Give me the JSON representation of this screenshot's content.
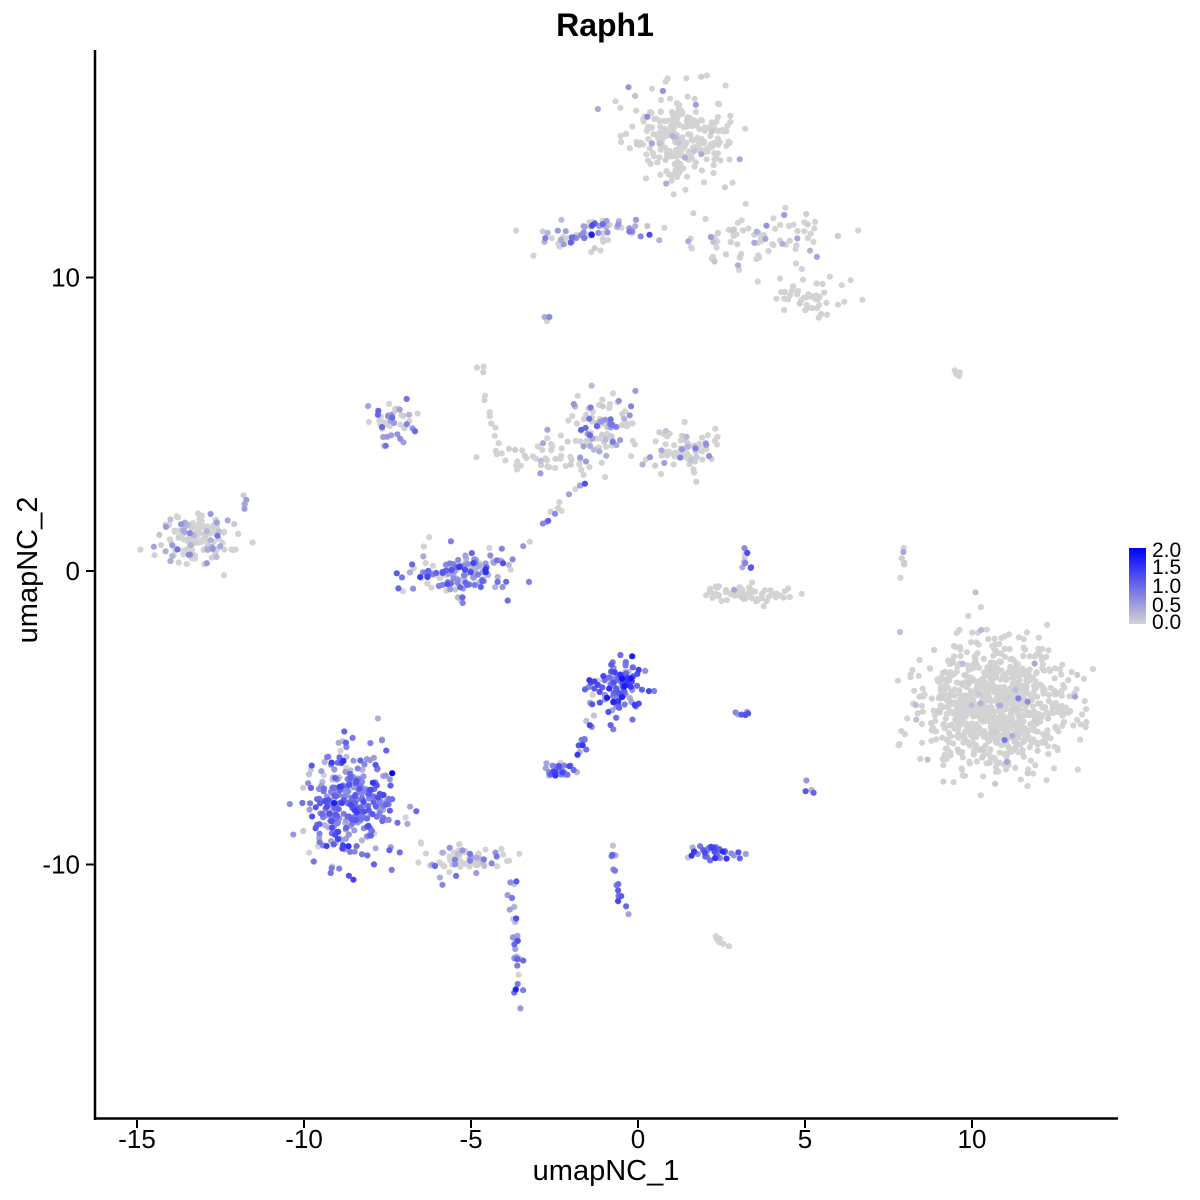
{
  "chart_data": {
    "type": "scatter",
    "title": "Raph1",
    "xlabel": "umapNC_1",
    "ylabel": "umapNC_2",
    "xlim": [
      -16.5,
      14.5
    ],
    "ylim": [
      -18.5,
      17.5
    ],
    "x_ticks": [
      -15,
      -10,
      -5,
      0,
      5,
      10
    ],
    "y_ticks": [
      -10,
      0,
      10
    ],
    "grid": false,
    "legend_position": "right",
    "color_scale": {
      "low_color": "#d3d3d3",
      "high_color": "#0000ff",
      "min": 0,
      "max": 2.0,
      "breaks": [
        "2.0",
        "1.5",
        "1.0",
        "0.5",
        "0.0"
      ]
    },
    "clusters": [
      {
        "cx": 1.3,
        "cy": 14.8,
        "sx": 1.0,
        "sy": 1.0,
        "n": 260,
        "expr": 0.05
      },
      {
        "cx": -1.5,
        "cy": 11.5,
        "sx": 1.2,
        "sy": 0.4,
        "n": 70,
        "expr": 0.55
      },
      {
        "cx": 3.7,
        "cy": 11.3,
        "sx": 1.6,
        "sy": 0.6,
        "n": 80,
        "expr": 0.25
      },
      {
        "cx": 5.0,
        "cy": 9.3,
        "sx": 0.9,
        "sy": 0.4,
        "n": 45,
        "expr": 0.05
      },
      {
        "cx": -13.2,
        "cy": 1.1,
        "sx": 0.8,
        "sy": 0.6,
        "n": 130,
        "expr": 0.25
      },
      {
        "cx": -7.4,
        "cy": 5.1,
        "sx": 0.45,
        "sy": 0.5,
        "n": 45,
        "expr": 0.55
      },
      {
        "cx": -1.1,
        "cy": 5.0,
        "sx": 0.55,
        "sy": 0.8,
        "n": 80,
        "expr": 0.45
      },
      {
        "cx": 1.3,
        "cy": 4.1,
        "sx": 0.9,
        "sy": 0.5,
        "n": 80,
        "expr": 0.2
      },
      {
        "cx": -2.5,
        "cy": 4.0,
        "sx": 1.2,
        "sy": 0.45,
        "n": 55,
        "expr": 0.12
      },
      {
        "cx": -5.3,
        "cy": -0.1,
        "sx": 1.0,
        "sy": 0.5,
        "n": 140,
        "expr": 0.7
      },
      {
        "cx": 3.4,
        "cy": -0.8,
        "sx": 0.9,
        "sy": 0.2,
        "n": 60,
        "expr": 0.02
      },
      {
        "cx": -0.6,
        "cy": -3.9,
        "sx": 0.55,
        "sy": 0.6,
        "n": 110,
        "expr": 1.0
      },
      {
        "cx": -8.6,
        "cy": -8.0,
        "sx": 0.9,
        "sy": 1.2,
        "n": 330,
        "expr": 0.8
      },
      {
        "cx": -5.1,
        "cy": -9.8,
        "sx": 0.9,
        "sy": 0.35,
        "n": 70,
        "expr": 0.4
      },
      {
        "cx": -2.4,
        "cy": -6.8,
        "sx": 0.35,
        "sy": 0.15,
        "n": 30,
        "expr": 0.8
      },
      {
        "cx": 2.3,
        "cy": -9.6,
        "sx": 0.55,
        "sy": 0.18,
        "n": 40,
        "expr": 0.9
      },
      {
        "cx": 10.7,
        "cy": -4.7,
        "sx": 1.4,
        "sy": 1.4,
        "n": 900,
        "expr": 0.01
      }
    ],
    "paths": [
      {
        "x0": -3.8,
        "y0": -10.4,
        "x1": -3.5,
        "y1": -15.0,
        "n": 30,
        "expr": 0.7
      },
      {
        "x0": -1.3,
        "y0": -4.8,
        "x1": -1.8,
        "y1": -6.3,
        "n": 12,
        "expr": 0.8
      },
      {
        "x0": -0.8,
        "y0": -9.3,
        "x1": -0.3,
        "y1": -12.0,
        "n": 14,
        "expr": 0.8
      },
      {
        "x0": -4.2,
        "y0": 3.8,
        "x1": -4.7,
        "y1": 7.3,
        "n": 14,
        "expr": 0.05
      },
      {
        "x0": -3.5,
        "y0": 0.7,
        "x1": -1.5,
        "y1": 3.2,
        "n": 14,
        "expr": 0.5
      },
      {
        "x0": 3.0,
        "y0": 1.3,
        "x1": 3.3,
        "y1": -0.2,
        "n": 10,
        "expr": 0.5
      },
      {
        "x0": 8.0,
        "y0": 0.9,
        "x1": 7.8,
        "y1": -0.4,
        "n": 6,
        "expr": 0.3
      },
      {
        "x0": -2.8,
        "y0": 8.6,
        "x1": -2.5,
        "y1": 8.9,
        "n": 5,
        "expr": 0.3
      },
      {
        "x0": 2.3,
        "y0": -12.4,
        "x1": 2.6,
        "y1": -12.7,
        "n": 8,
        "expr": 0.1
      },
      {
        "x0": 2.7,
        "y0": -4.9,
        "x1": 3.3,
        "y1": -4.8,
        "n": 6,
        "expr": 0.8
      },
      {
        "x0": -11.6,
        "y0": 2.6,
        "x1": -12.0,
        "y1": 2.0,
        "n": 4,
        "expr": 0.5
      },
      {
        "x0": 9.3,
        "y0": 6.7,
        "x1": 9.8,
        "y1": 6.8,
        "n": 4,
        "expr": 0.05
      },
      {
        "x0": 5.0,
        "y0": -7.1,
        "x1": 5.1,
        "y1": -7.6,
        "n": 4,
        "expr": 0.8
      }
    ]
  }
}
